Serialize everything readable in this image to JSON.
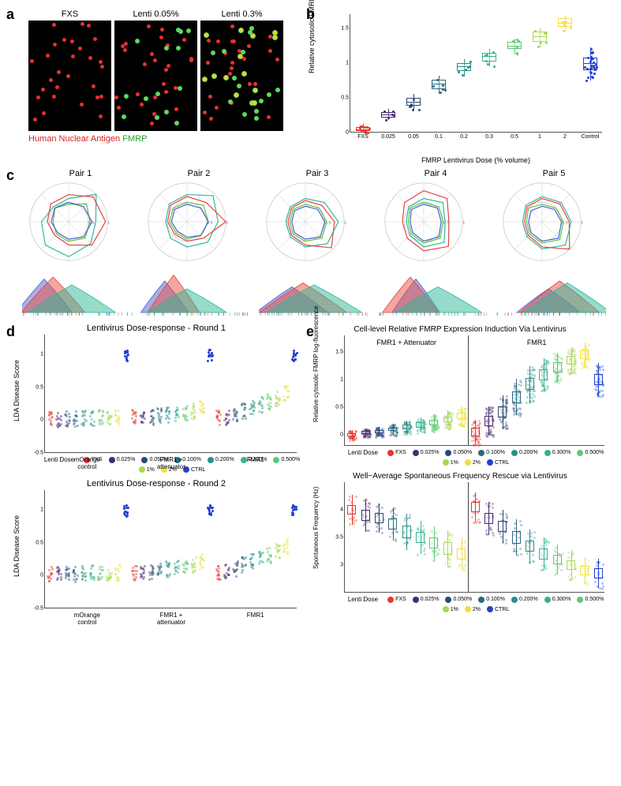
{
  "colors": {
    "FXS": "#e8352e",
    "0.025": "#4a2870",
    "0.05": "#2a4878",
    "0.1": "#2a6880",
    "0.2": "#2a9088",
    "0.3": "#3ab090",
    "0.5": "#60c870",
    "1": "#a8d850",
    "2": "#f0e040",
    "CTRL": "#2040d0"
  },
  "dose_order": [
    "FXS",
    "0.025",
    "0.05",
    "0.1",
    "0.2",
    "0.3",
    "0.5",
    "1",
    "2",
    "CTRL"
  ],
  "panel_a": {
    "labels": [
      "FXS",
      "Lenti 0.05%",
      "Lenti 0.3%"
    ],
    "caption_red": "Human Nuclear Antigen",
    "caption_green": "FMRP",
    "red_counts": [
      28,
      26,
      24
    ],
    "green_counts": [
      0,
      14,
      28
    ]
  },
  "panel_b": {
    "ylabel": "Relative cytosolic FMRP log−fluorescence",
    "xlabel": "FMRP Lentivirus Dose (% volume)",
    "ylim": [
      0,
      1.7
    ],
    "yticks": [
      0,
      0.5,
      1.0,
      1.5
    ],
    "xticks": [
      "FXS",
      "0.025",
      "0.05",
      "0.1",
      "0.2",
      "0.3",
      "0.5",
      "1",
      "2",
      "Control"
    ],
    "boxes": [
      {
        "dose": "FXS",
        "q1": 0.02,
        "med": 0.05,
        "q3": 0.08,
        "lo": 0.0,
        "hi": 0.12,
        "n": 12
      },
      {
        "dose": "0.025",
        "q1": 0.22,
        "med": 0.26,
        "q3": 0.3,
        "lo": 0.18,
        "hi": 0.34,
        "n": 6
      },
      {
        "dose": "0.05",
        "q1": 0.38,
        "med": 0.44,
        "q3": 0.5,
        "lo": 0.32,
        "hi": 0.55,
        "n": 6
      },
      {
        "dose": "0.1",
        "q1": 0.62,
        "med": 0.7,
        "q3": 0.76,
        "lo": 0.55,
        "hi": 0.82,
        "n": 6
      },
      {
        "dose": "0.2",
        "q1": 0.88,
        "med": 0.95,
        "q3": 1.0,
        "lo": 0.8,
        "hi": 1.05,
        "n": 6
      },
      {
        "dose": "0.3",
        "q1": 1.02,
        "med": 1.1,
        "q3": 1.15,
        "lo": 0.95,
        "hi": 1.2,
        "n": 6
      },
      {
        "dose": "0.5",
        "q1": 1.2,
        "med": 1.25,
        "q3": 1.3,
        "lo": 1.12,
        "hi": 1.35,
        "n": 6
      },
      {
        "dose": "1",
        "q1": 1.3,
        "med": 1.38,
        "q3": 1.45,
        "lo": 1.22,
        "hi": 1.5,
        "n": 6
      },
      {
        "dose": "2",
        "q1": 1.52,
        "med": 1.58,
        "q3": 1.64,
        "lo": 1.45,
        "hi": 1.68,
        "n": 6
      },
      {
        "dose": "CTRL",
        "q1": 0.9,
        "med": 1.0,
        "q3": 1.08,
        "lo": 0.75,
        "hi": 1.22,
        "n": 30
      }
    ]
  },
  "panel_c": {
    "titles": [
      "Pair 1",
      "Pair 2",
      "Pair 3",
      "Pair 4",
      "Pair 5"
    ],
    "radar_ticks": [
      "0.5",
      "1"
    ],
    "series_colors": {
      "red": "#e84040",
      "blue": "#4060d0",
      "teal": "#30b898",
      "green": "#60c040"
    },
    "pairs": [
      {
        "red": [
          0.7,
          0.9,
          0.95,
          0.85,
          0.6,
          0.5,
          0.55,
          0.65
        ],
        "blue": [
          0.5,
          0.55,
          0.6,
          0.55,
          0.45,
          0.4,
          0.45,
          0.5
        ],
        "teal": [
          0.6,
          1.0,
          0.7,
          0.8,
          0.9,
          0.85,
          0.7,
          0.55
        ],
        "green": [
          0.45,
          0.65,
          0.55,
          0.6,
          0.5,
          0.45,
          0.4,
          0.5
        ]
      },
      {
        "red": [
          0.65,
          0.7,
          1.0,
          0.6,
          0.5,
          0.45,
          0.5,
          0.6
        ],
        "blue": [
          0.45,
          0.5,
          0.55,
          0.5,
          0.4,
          0.35,
          0.4,
          0.45
        ],
        "teal": [
          0.7,
          0.95,
          0.8,
          0.75,
          0.65,
          0.6,
          0.55,
          0.65
        ],
        "green": [
          0.5,
          0.6,
          0.55,
          0.5,
          0.45,
          0.4,
          0.45,
          0.5
        ]
      },
      {
        "red": [
          0.55,
          0.6,
          0.75,
          0.95,
          0.6,
          0.5,
          0.45,
          0.5
        ],
        "blue": [
          0.4,
          0.45,
          0.5,
          0.55,
          0.45,
          0.4,
          0.35,
          0.4
        ],
        "teal": [
          0.6,
          0.7,
          0.85,
          0.8,
          0.65,
          0.55,
          0.5,
          0.55
        ],
        "green": [
          0.45,
          0.5,
          0.55,
          0.6,
          0.5,
          0.45,
          0.4,
          0.45
        ]
      },
      {
        "red": [
          0.8,
          0.85,
          0.65,
          0.9,
          0.75,
          0.6,
          0.55,
          0.7
        ],
        "blue": [
          0.45,
          0.5,
          0.45,
          0.55,
          0.5,
          0.4,
          0.35,
          0.45
        ],
        "teal": [
          0.6,
          0.7,
          0.55,
          0.75,
          0.65,
          0.5,
          0.45,
          0.55
        ],
        "green": [
          0.5,
          0.55,
          0.5,
          0.6,
          0.55,
          0.45,
          0.4,
          0.5
        ]
      },
      {
        "red": [
          0.6,
          0.65,
          0.7,
          1.0,
          0.65,
          0.5,
          0.45,
          0.55
        ],
        "blue": [
          0.4,
          0.45,
          0.5,
          0.6,
          0.5,
          0.4,
          0.35,
          0.4
        ],
        "teal": [
          0.65,
          0.7,
          0.75,
          0.85,
          0.7,
          0.55,
          0.5,
          0.6
        ],
        "green": [
          0.45,
          0.5,
          0.55,
          0.65,
          0.55,
          0.45,
          0.4,
          0.5
        ]
      }
    ],
    "density_colors": {
      "red": "#e8504080",
      "blue": "#5060d080",
      "teal": "#30b89880"
    },
    "densities": [
      {
        "red": {
          "peak": 0.28,
          "h": 0.9,
          "w": 0.16
        },
        "blue": {
          "peak": 0.2,
          "h": 0.85,
          "w": 0.14
        },
        "teal": {
          "peak": 0.45,
          "h": 0.7,
          "w": 0.22
        }
      },
      {
        "red": {
          "peak": 0.3,
          "h": 0.95,
          "w": 0.13
        },
        "blue": {
          "peak": 0.22,
          "h": 0.8,
          "w": 0.12
        },
        "teal": {
          "peak": 0.42,
          "h": 0.6,
          "w": 0.2
        }
      },
      {
        "red": {
          "peak": 0.4,
          "h": 0.75,
          "w": 0.22
        },
        "blue": {
          "peak": 0.3,
          "h": 0.65,
          "w": 0.18
        },
        "teal": {
          "peak": 0.5,
          "h": 0.7,
          "w": 0.24
        }
      },
      {
        "red": {
          "peak": 0.3,
          "h": 0.9,
          "w": 0.14
        },
        "blue": {
          "peak": 0.35,
          "h": 0.85,
          "w": 0.12
        },
        "teal": {
          "peak": 0.55,
          "h": 0.65,
          "w": 0.22
        }
      },
      {
        "red": {
          "peak": 0.58,
          "h": 0.8,
          "w": 0.2
        },
        "blue": {
          "peak": 0.48,
          "h": 0.6,
          "w": 0.16
        },
        "teal": {
          "peak": 0.65,
          "h": 0.75,
          "w": 0.22
        }
      }
    ]
  },
  "panel_d": {
    "titles": [
      "Lentivirus Dose-response - Round 1",
      "Lentivirus Dose-response - Round 2"
    ],
    "ylabel": "LDA Disease Score",
    "ylim": [
      -0.5,
      1.3
    ],
    "yticks": [
      -0.5,
      0,
      0.5,
      1.0
    ],
    "groups": [
      "mOrange\ncontrol",
      "FMR1 +\nattenuator",
      "FMR1"
    ],
    "legend_title": "Lenti Dose",
    "legend": [
      {
        "k": "FXS",
        "l": "FXS"
      },
      {
        "k": "0.025",
        "l": "0.025%"
      },
      {
        "k": "0.05",
        "l": "0.050%"
      },
      {
        "k": "0.1",
        "l": "0.100%"
      },
      {
        "k": "0.2",
        "l": "0.200%"
      },
      {
        "k": "0.3",
        "l": "0.300%"
      },
      {
        "k": "0.5",
        "l": "0.500%"
      },
      {
        "k": "1",
        "l": "1%"
      },
      {
        "k": "2",
        "l": "2%"
      },
      {
        "k": "CTRL",
        "l": "CTRL"
      }
    ],
    "ctrl_mean": 1.0,
    "means": {
      "r1": {
        "mOrange": [
          0.05,
          0.02,
          0.04,
          0.03,
          0.05,
          0.04,
          0.06,
          0.03,
          0.05
        ],
        "attenuator": [
          0.05,
          0.04,
          0.06,
          0.08,
          0.1,
          0.12,
          0.13,
          0.15,
          0.2
        ],
        "FMR1": [
          0.05,
          0.06,
          0.1,
          0.15,
          0.2,
          0.25,
          0.3,
          0.35,
          0.42
        ]
      },
      "r2": {
        "mOrange": [
          0.04,
          0.03,
          0.05,
          0.04,
          0.06,
          0.05,
          0.07,
          0.04,
          0.06
        ],
        "attenuator": [
          0.04,
          0.05,
          0.07,
          0.09,
          0.11,
          0.14,
          0.16,
          0.18,
          0.22
        ],
        "FMR1": [
          0.04,
          0.07,
          0.12,
          0.18,
          0.23,
          0.28,
          0.33,
          0.38,
          0.45
        ]
      }
    },
    "spread": 0.12,
    "n_per": 14
  },
  "panel_e": {
    "top_title": "Cell-level Relative FMRP Expression Induction Via Lentivirus",
    "top_ylabel": "Relative cytosolic FMRP log-fluorescence",
    "top_ylim": [
      -0.2,
      1.8
    ],
    "top_yticks": [
      0,
      0.5,
      1.0,
      1.5
    ],
    "sections": [
      "FMR1 + Attenuator",
      "FMR1"
    ],
    "top_boxes": {
      "att": [
        {
          "d": "FXS",
          "m": 0.0,
          "iq": 0.06
        },
        {
          "d": "0.025",
          "m": 0.04,
          "iq": 0.05
        },
        {
          "d": "0.05",
          "m": 0.06,
          "iq": 0.06
        },
        {
          "d": "0.1",
          "m": 0.1,
          "iq": 0.07
        },
        {
          "d": "0.2",
          "m": 0.14,
          "iq": 0.08
        },
        {
          "d": "0.3",
          "m": 0.18,
          "iq": 0.09
        },
        {
          "d": "0.5",
          "m": 0.22,
          "iq": 0.1
        },
        {
          "d": "1",
          "m": 0.28,
          "iq": 0.11
        },
        {
          "d": "2",
          "m": 0.34,
          "iq": 0.12
        }
      ],
      "fmr1": [
        {
          "d": "FXS",
          "m": 0.05,
          "iq": 0.15
        },
        {
          "d": "0.025",
          "m": 0.25,
          "iq": 0.18
        },
        {
          "d": "0.05",
          "m": 0.42,
          "iq": 0.2
        },
        {
          "d": "0.1",
          "m": 0.68,
          "iq": 0.22
        },
        {
          "d": "0.2",
          "m": 0.92,
          "iq": 0.22
        },
        {
          "d": "0.3",
          "m": 1.08,
          "iq": 0.2
        },
        {
          "d": "0.5",
          "m": 1.22,
          "iq": 0.18
        },
        {
          "d": "1",
          "m": 1.35,
          "iq": 0.16
        },
        {
          "d": "2",
          "m": 1.45,
          "iq": 0.15
        },
        {
          "d": "CTRL",
          "m": 1.0,
          "iq": 0.2
        }
      ]
    },
    "bot_title": "Well−Average Spontaneous Frequency Rescue via Lentivirus",
    "bot_ylabel": "Spontaneous Frequency (Hz)",
    "bot_ylim": [
      2.5,
      4.5
    ],
    "bot_yticks": [
      3.0,
      3.5,
      4.0
    ],
    "bot_boxes": {
      "att": [
        {
          "d": "FXS",
          "m": 4.0,
          "iq": 0.18
        },
        {
          "d": "0.025",
          "m": 3.9,
          "iq": 0.2
        },
        {
          "d": "0.05",
          "m": 3.85,
          "iq": 0.18
        },
        {
          "d": "0.1",
          "m": 3.75,
          "iq": 0.2
        },
        {
          "d": "0.2",
          "m": 3.6,
          "iq": 0.22
        },
        {
          "d": "0.3",
          "m": 3.5,
          "iq": 0.2
        },
        {
          "d": "0.5",
          "m": 3.4,
          "iq": 0.2
        },
        {
          "d": "1",
          "m": 3.3,
          "iq": 0.22
        },
        {
          "d": "2",
          "m": 3.2,
          "iq": 0.2
        }
      ],
      "fmr1": [
        {
          "d": "FXS",
          "m": 4.05,
          "iq": 0.18
        },
        {
          "d": "0.025",
          "m": 3.85,
          "iq": 0.2
        },
        {
          "d": "0.05",
          "m": 3.7,
          "iq": 0.2
        },
        {
          "d": "0.1",
          "m": 3.5,
          "iq": 0.22
        },
        {
          "d": "0.2",
          "m": 3.35,
          "iq": 0.2
        },
        {
          "d": "0.3",
          "m": 3.2,
          "iq": 0.2
        },
        {
          "d": "0.5",
          "m": 3.1,
          "iq": 0.18
        },
        {
          "d": "1",
          "m": 3.0,
          "iq": 0.18
        },
        {
          "d": "2",
          "m": 2.9,
          "iq": 0.16
        },
        {
          "d": "CTRL",
          "m": 2.85,
          "iq": 0.18
        }
      ]
    },
    "xlabel": "Lenti Dose",
    "legend": [
      {
        "k": "FXS",
        "l": "FXS"
      },
      {
        "k": "0.025",
        "l": "0.025%"
      },
      {
        "k": "0.05",
        "l": "0.050%"
      },
      {
        "k": "0.1",
        "l": "0.100%"
      },
      {
        "k": "0.2",
        "l": "0.200%"
      },
      {
        "k": "0.3",
        "l": "0.300%"
      },
      {
        "k": "0.5",
        "l": "0.500%"
      },
      {
        "k": "1",
        "l": "1%"
      },
      {
        "k": "2",
        "l": "2%"
      },
      {
        "k": "CTRL",
        "l": "CTRL"
      }
    ]
  }
}
